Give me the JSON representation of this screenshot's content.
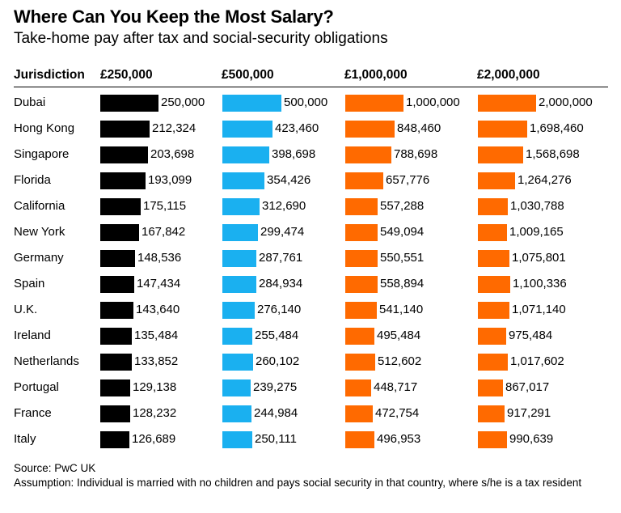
{
  "title": "Where Can You Keep the Most Salary?",
  "subtitle": "Take-home pay after tax and social-security obligations",
  "source": "Source: PwC UK",
  "note": "Assumption: Individual is married with no children and pays social security in that country, where s/he is a tax resident",
  "chart_data": {
    "type": "bar",
    "orientation": "horizontal",
    "row_header": "Jurisdiction",
    "categories": [
      "Dubai",
      "Hong Kong",
      "Singapore",
      "Florida",
      "California",
      "New York",
      "Germany",
      "Spain",
      "U.K.",
      "Ireland",
      "Netherlands",
      "Portugal",
      "France",
      "Italy"
    ],
    "series": [
      {
        "name": "£250,000",
        "color": "#000000",
        "values": [
          250000,
          212324,
          203698,
          193099,
          175115,
          167842,
          148536,
          147434,
          143640,
          135484,
          133852,
          129138,
          128232,
          126689
        ],
        "labels": [
          "250,000",
          "212,324",
          "203,698",
          "193,099",
          "175,115",
          "167,842",
          "148,536",
          "147,434",
          "143,640",
          "135,484",
          "133,852",
          "129,138",
          "128,232",
          "126,689"
        ]
      },
      {
        "name": "£500,000",
        "color": "#1ab0f0",
        "values": [
          500000,
          423460,
          398698,
          354426,
          312690,
          299474,
          287761,
          284934,
          276140,
          255484,
          260102,
          239275,
          244984,
          250111
        ],
        "labels": [
          "500,000",
          "423,460",
          "398,698",
          "354,426",
          "312,690",
          "299,474",
          "287,761",
          "284,934",
          "276,140",
          "255,484",
          "260,102",
          "239,275",
          "244,984",
          "250,111"
        ]
      },
      {
        "name": "£1,000,000",
        "color": "#ff6a00",
        "values": [
          1000000,
          848460,
          788698,
          657776,
          557288,
          549094,
          550551,
          558894,
          541140,
          495484,
          512602,
          448717,
          472754,
          496953
        ],
        "labels": [
          "1,000,000",
          "848,460",
          "788,698",
          "657,776",
          "557,288",
          "549,094",
          "550,551",
          "558,894",
          "541,140",
          "495,484",
          "512,602",
          "448,717",
          "472,754",
          "496,953"
        ]
      },
      {
        "name": "£2,000,000",
        "color": "#ff6a00",
        "values": [
          2000000,
          1698460,
          1568698,
          1264276,
          1030788,
          1009165,
          1075801,
          1100336,
          1071140,
          975484,
          1017602,
          867017,
          917291,
          990639
        ],
        "labels": [
          "2,000,000",
          "1,698,460",
          "1,568,698",
          "1,264,276",
          "1,030,788",
          "1,009,165",
          "1,075,801",
          "1,100,336",
          "1,071,140",
          "975,484",
          "1,017,602",
          "867,017",
          "917,291",
          "990,639"
        ]
      }
    ]
  }
}
